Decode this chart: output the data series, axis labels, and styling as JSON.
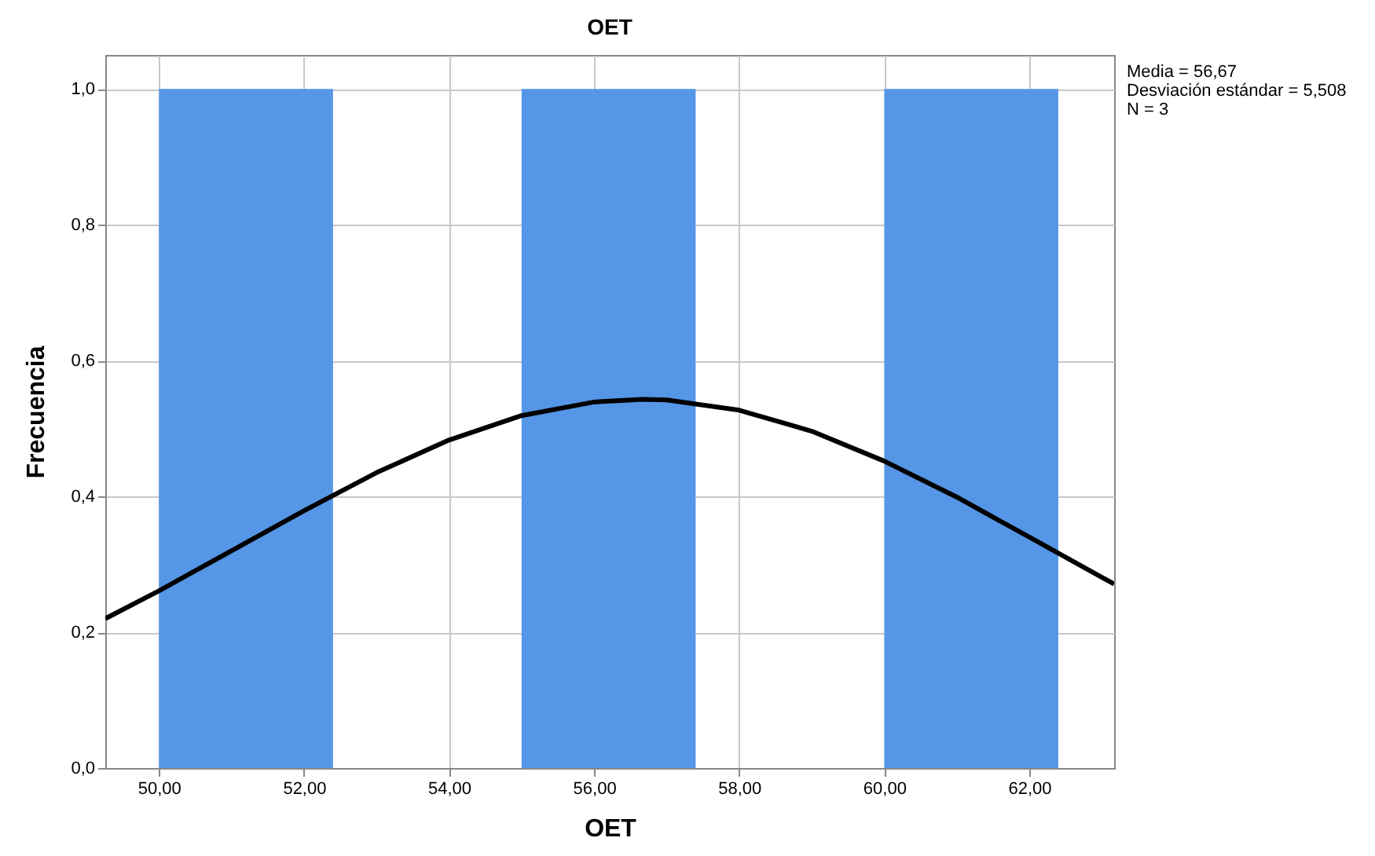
{
  "chart_data": {
    "type": "histogram",
    "title": "OET",
    "xlabel": "OET",
    "ylabel": "Frecuencia",
    "annotations": [
      "Media = 56,67",
      "Desviación estándar = 5,508",
      "N = 3"
    ],
    "series": [
      {
        "color": "#5596e6",
        "bins": [
          50.0,
          52.4,
          55.0,
          57.4,
          60.0,
          62.4
        ],
        "values": [
          1,
          0,
          1,
          0,
          1
        ]
      },
      {
        "type": "line",
        "color": "#000000",
        "x": [
          49.26,
          50,
          51,
          52,
          53,
          54,
          55,
          56,
          56.67,
          57,
          58,
          59,
          60,
          61,
          62,
          63,
          63.17
        ],
        "values": [
          0.22,
          0.261,
          0.32,
          0.379,
          0.435,
          0.483,
          0.519,
          0.539,
          0.543,
          0.542,
          0.527,
          0.496,
          0.452,
          0.399,
          0.34,
          0.281,
          0.271
        ]
      }
    ],
    "xlim": [
      49.26,
      63.17
    ],
    "xticks": [
      {
        "value": 50,
        "label": "50,00"
      },
      {
        "value": 52,
        "label": "52,00"
      },
      {
        "value": 54,
        "label": "54,00"
      },
      {
        "value": 56,
        "label": "56,00"
      },
      {
        "value": 58,
        "label": "58,00"
      },
      {
        "value": 60,
        "label": "60,00"
      },
      {
        "value": 62,
        "label": "62,00"
      }
    ],
    "ylim": [
      0,
      1.05
    ],
    "yticks": [
      {
        "value": 0,
        "label": "0,0"
      },
      {
        "value": 0.2,
        "label": "0,2"
      },
      {
        "value": 0.4,
        "label": "0,4"
      },
      {
        "value": 0.6,
        "label": "0,6"
      },
      {
        "value": 0.8,
        "label": "0,8"
      },
      {
        "value": 1,
        "label": "1,0"
      }
    ],
    "grid": true
  }
}
